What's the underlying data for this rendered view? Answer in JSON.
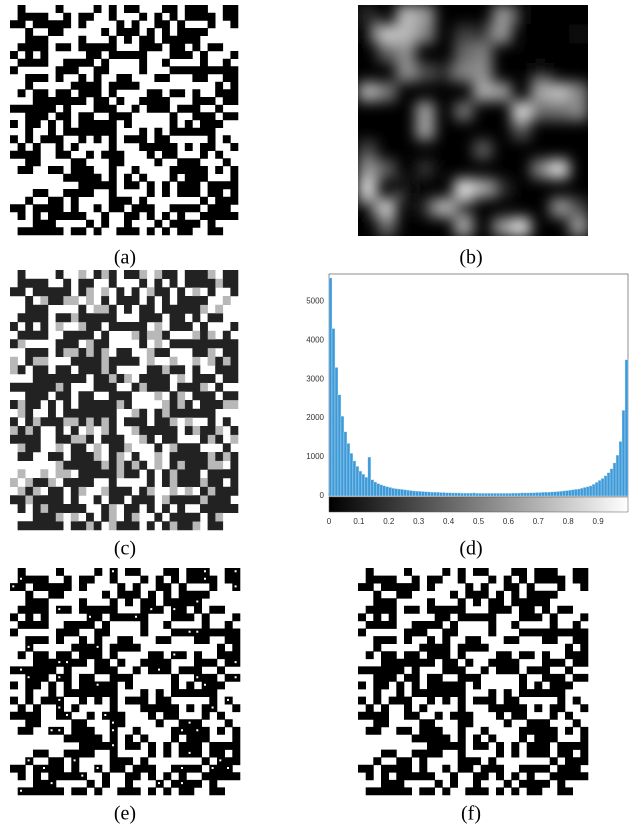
{
  "captions": [
    "(a)",
    "(b)",
    "(c)",
    "(d)",
    "(e)",
    "(f)"
  ],
  "chart_data": {
    "type": "histogram",
    "bins": [
      0,
      0.01,
      0.02,
      0.03,
      0.04,
      0.05,
      0.06,
      0.07,
      0.08,
      0.09,
      0.1,
      0.11,
      0.12,
      0.13,
      0.14,
      0.15,
      0.16,
      0.17,
      0.18,
      0.19,
      0.2,
      0.21,
      0.22,
      0.23,
      0.24,
      0.25,
      0.26,
      0.27,
      0.28,
      0.29,
      0.3,
      0.31,
      0.32,
      0.33,
      0.34,
      0.35,
      0.36,
      0.37,
      0.38,
      0.39,
      0.4,
      0.41,
      0.42,
      0.43,
      0.44,
      0.45,
      0.46,
      0.47,
      0.48,
      0.49,
      0.5,
      0.51,
      0.52,
      0.53,
      0.54,
      0.55,
      0.56,
      0.57,
      0.58,
      0.59,
      0.6,
      0.61,
      0.62,
      0.63,
      0.64,
      0.65,
      0.66,
      0.67,
      0.68,
      0.69,
      0.7,
      0.71,
      0.72,
      0.73,
      0.74,
      0.75,
      0.76,
      0.77,
      0.78,
      0.79,
      0.8,
      0.81,
      0.82,
      0.83,
      0.84,
      0.85,
      0.86,
      0.87,
      0.88,
      0.89,
      0.9,
      0.91,
      0.92,
      0.93,
      0.94,
      0.95,
      0.96,
      0.97,
      0.98,
      0.99,
      1
    ],
    "values": [
      5600,
      4300,
      3300,
      2600,
      2050,
      1650,
      1350,
      1100,
      900,
      760,
      640,
      560,
      480,
      1000,
      420,
      360,
      320,
      290,
      260,
      240,
      220,
      200,
      190,
      180,
      170,
      160,
      150,
      140,
      130,
      125,
      120,
      115,
      110,
      105,
      100,
      100,
      95,
      90,
      90,
      85,
      85,
      80,
      80,
      80,
      75,
      75,
      75,
      75,
      80,
      70,
      70,
      70,
      70,
      70,
      70,
      70,
      70,
      70,
      70,
      70,
      70,
      75,
      75,
      75,
      80,
      80,
      80,
      85,
      85,
      90,
      90,
      95,
      100,
      100,
      105,
      110,
      115,
      120,
      130,
      140,
      150,
      160,
      170,
      180,
      200,
      220,
      240,
      260,
      300,
      350,
      400,
      450,
      520,
      600,
      700,
      850,
      1050,
      1400,
      2200,
      3500
    ],
    "color": "#3d9ad8",
    "xlim": [
      0,
      1
    ],
    "ylim": [
      0,
      5700
    ],
    "xticks": [
      0,
      0.1,
      0.2,
      0.3,
      0.4,
      0.5,
      0.6,
      0.7,
      0.8,
      0.9
    ],
    "yticks": [
      0,
      1000,
      2000,
      3000,
      4000,
      5000
    ]
  }
}
